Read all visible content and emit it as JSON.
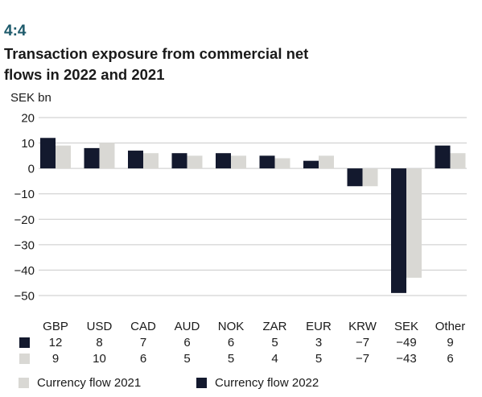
{
  "figure": {
    "number": "4:4",
    "title": "Transaction exposure from commercial net flows in 2022 and 2021",
    "unit": "SEK bn"
  },
  "colors": {
    "flow_2022": "#13192e",
    "flow_2021": "#d9d8d4",
    "grid": "#c9c9c9",
    "text": "#1a1a1a",
    "accent": "#1d5a6b"
  },
  "legend": {
    "flow_2021": "Currency flow 2021",
    "flow_2022": "Currency flow 2022"
  },
  "chart_data": {
    "type": "bar",
    "title": "Transaction exposure from commercial net flows in 2022 and 2021",
    "ylabel": "SEK bn",
    "ylim": [
      -50,
      20
    ],
    "yticks": [
      20,
      10,
      0,
      -10,
      -20,
      -30,
      -40,
      -50
    ],
    "ytick_labels": [
      "20",
      "10",
      "0",
      "−10",
      "−20",
      "−30",
      "−40",
      "−50"
    ],
    "grid": true,
    "legend_position": "bottom",
    "categories": [
      "GBP",
      "USD",
      "CAD",
      "AUD",
      "NOK",
      "ZAR",
      "EUR",
      "KRW",
      "SEK",
      "Other"
    ],
    "series": [
      {
        "name": "Currency flow 2022",
        "values": [
          12,
          8,
          7,
          6,
          6,
          5,
          3,
          -7,
          -49,
          9
        ],
        "labels": [
          "12",
          "8",
          "7",
          "6",
          "6",
          "5",
          "3",
          "−7",
          "−49",
          "9"
        ]
      },
      {
        "name": "Currency flow 2021",
        "values": [
          9,
          10,
          6,
          5,
          5,
          4,
          5,
          -7,
          -43,
          6
        ],
        "labels": [
          "9",
          "10",
          "6",
          "5",
          "5",
          "4",
          "5",
          "−7",
          "−43",
          "6"
        ]
      }
    ]
  }
}
